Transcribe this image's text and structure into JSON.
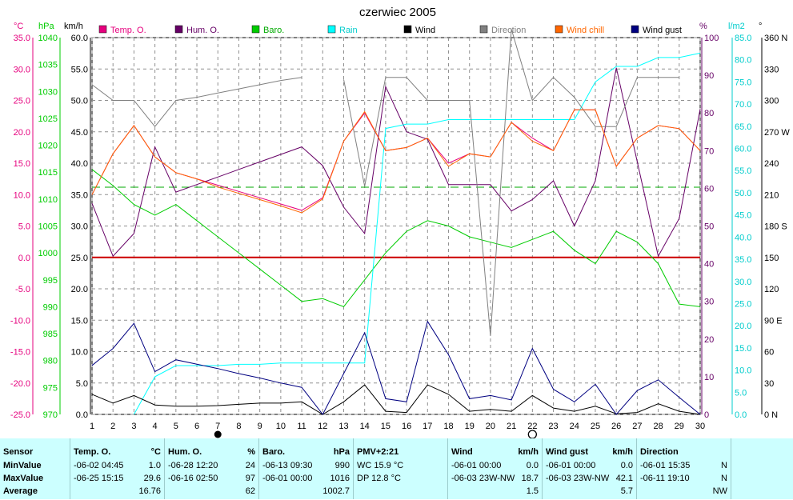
{
  "title": "czerwiec 2005",
  "colors": {
    "temp": "#e6007e",
    "hum": "#660066",
    "baro": "#00cc00",
    "rain": "#00ffff",
    "wind": "#000000",
    "direction": "#808080",
    "windchill": "#ff6600",
    "gust": "#000080",
    "zero": "#cc0000",
    "baroRef": "#00aa00"
  },
  "units": {
    "temp": "°C",
    "baro": "hPa",
    "wind": "km/h",
    "hum": "%",
    "rain": "l/m2",
    "dir": "°"
  },
  "legend": [
    "Temp. O.",
    "Hum. O.",
    "Baro.",
    "Rain",
    "Wind",
    "Direction",
    "Wind chill",
    "Wind gust"
  ],
  "moon_phases": [
    {
      "day": 7,
      "phase": "full"
    },
    {
      "day": 22,
      "phase": "new"
    }
  ],
  "chart_data": {
    "type": "line",
    "x": [
      1,
      2,
      3,
      4,
      5,
      6,
      7,
      8,
      9,
      10,
      11,
      12,
      13,
      14,
      15,
      16,
      17,
      18,
      19,
      20,
      21,
      22,
      23,
      24,
      25,
      26,
      27,
      28,
      29,
      30
    ],
    "axes": {
      "temp": {
        "min": -25,
        "max": 35,
        "step": 5,
        "ticks": [
          "35.0",
          "30.0",
          "25.0",
          "20.0",
          "15.0",
          "10.0",
          "5.0",
          "0.0",
          "-5.0",
          "-10.0",
          "-15.0",
          "-20.0",
          "-25.0"
        ]
      },
      "baro": {
        "min": 970,
        "max": 1040,
        "step": 5,
        "ticks": [
          "1040",
          "1035",
          "1030",
          "1025",
          "1020",
          "1015",
          "1010",
          "1005",
          "1000",
          "995",
          "990",
          "985",
          "980",
          "975",
          "970"
        ]
      },
      "wind": {
        "min": 0,
        "max": 60,
        "step": 5,
        "ticks": [
          "60.0",
          "55.0",
          "50.0",
          "45.0",
          "40.0",
          "35.0",
          "30.0",
          "25.0",
          "20.0",
          "15.0",
          "10.0",
          "5.0",
          "0.0"
        ]
      },
      "hum": {
        "min": 0,
        "max": 100,
        "step": 10,
        "ticks": [
          "100",
          "90",
          "80",
          "70",
          "60",
          "50",
          "40",
          "30",
          "20",
          "10",
          "0"
        ]
      },
      "rain": {
        "min": 0,
        "max": 85,
        "step": 5,
        "ticks": [
          "85.0",
          "80.0",
          "75.0",
          "70.0",
          "65.0",
          "60.0",
          "55.0",
          "50.0",
          "45.0",
          "40.0",
          "35.0",
          "30.0",
          "25.0",
          "20.0",
          "15.0",
          "10.0",
          "5.0",
          "0.0"
        ]
      },
      "dir": {
        "min": 0,
        "max": 360,
        "step": 30,
        "ticks": [
          "360 N",
          "330",
          "300",
          "270 W",
          "240",
          "210",
          "180 S",
          "150",
          "120",
          "90 E",
          "60",
          "30",
          "0 N"
        ]
      }
    },
    "series": [
      {
        "name": "Temp. O.",
        "axis": "temp",
        "color": "#e6007e",
        "values": [
          10.0,
          16.5,
          21.0,
          16.0,
          13.5,
          12.5,
          11.5,
          10.5,
          9.5,
          8.5,
          7.5,
          9.5,
          18.5,
          23.0,
          17.0,
          17.5,
          19.0,
          15.0,
          16.5,
          16.0,
          21.5,
          19.0,
          17.0,
          23.5,
          23.5,
          14.5,
          19.0,
          21.0,
          20.5,
          17.0
        ]
      },
      {
        "name": "Hum. O.",
        "axis": "hum",
        "color": "#660066",
        "values": [
          56,
          42,
          48,
          71,
          59,
          61,
          63,
          65,
          67,
          69,
          71,
          66,
          55,
          48,
          87,
          75,
          73,
          61,
          61,
          61,
          54,
          57,
          62,
          50,
          62,
          92,
          67,
          42,
          52,
          81
        ]
      },
      {
        "name": "Baro.",
        "axis": "baro",
        "color": "#00cc00",
        "values": [
          1015.5,
          1012.5,
          1009,
          1007,
          1009,
          1006,
          1003,
          1000,
          997,
          994,
          991,
          991.5,
          990,
          995,
          1000,
          1004,
          1006,
          1005,
          1003,
          1002,
          1001,
          1002.5,
          1004,
          1000.5,
          998,
          1004,
          1002,
          998,
          990.5,
          990
        ]
      },
      {
        "name": "Rain",
        "axis": "rain",
        "color": "#00ffff",
        "values": [
          null,
          null,
          0,
          8.5,
          11,
          11,
          11,
          11.3,
          11.3,
          11.6,
          11.6,
          11.6,
          11.6,
          11.6,
          64.5,
          65.5,
          65.5,
          66.5,
          66.5,
          66.5,
          66.5,
          66.5,
          66.5,
          66.5,
          75,
          78.5,
          78.5,
          80.5,
          80.5,
          81.5
        ]
      },
      {
        "name": "Wind",
        "axis": "wind",
        "color": "#000000",
        "values": [
          3.2,
          1.8,
          3.0,
          1.5,
          1.3,
          1.3,
          1.4,
          1.6,
          1.8,
          1.8,
          2.0,
          0.0,
          2.0,
          4.7,
          0.5,
          0.3,
          4.7,
          3.2,
          0.5,
          0.8,
          0.5,
          3.0,
          1.0,
          0.5,
          1.3,
          0.1,
          0.3,
          1.7,
          0.5,
          0.0
        ]
      },
      {
        "name": "Direction",
        "axis": "dir",
        "color": "#808080",
        "values": [
          315,
          300,
          300,
          275,
          300,
          303,
          307,
          311,
          315,
          319,
          322,
          null,
          320,
          218,
          322,
          322,
          300,
          300,
          300,
          75,
          368,
          300,
          322,
          303,
          275,
          275,
          322,
          322,
          322,
          null
        ]
      },
      {
        "name": "Wind chill",
        "axis": "temp",
        "color": "#ff6600",
        "values": [
          10.0,
          16.5,
          21.0,
          16.0,
          13.5,
          12.5,
          11.2,
          10.2,
          9.2,
          8.2,
          7.1,
          9.3,
          18.5,
          23.2,
          17.0,
          17.5,
          19.0,
          14.5,
          16.5,
          16.0,
          21.5,
          18.5,
          17.0,
          23.5,
          23.5,
          14.5,
          19.0,
          21.0,
          20.5,
          17.0
        ]
      },
      {
        "name": "Wind gust",
        "axis": "wind",
        "color": "#000080",
        "values": [
          7.8,
          10.5,
          14.5,
          6.8,
          8.7,
          8.0,
          7.3,
          6.5,
          5.8,
          5.0,
          4.3,
          0.0,
          6.5,
          13.0,
          2.5,
          2.0,
          14.8,
          9.5,
          2.5,
          3.0,
          2.3,
          10.5,
          4.0,
          2.0,
          4.8,
          0.0,
          3.8,
          5.5,
          2.7,
          0.0
        ]
      }
    ],
    "reference_lines": [
      {
        "axis": "temp",
        "value": 0.0,
        "color": "#cc0000"
      },
      {
        "axis": "baro",
        "value": 1012.2,
        "color": "#00aa00"
      }
    ]
  },
  "panel": {
    "sensor": {
      "header": "Sensor",
      "min": "MinValue",
      "max": "MaxValue",
      "avg": "Average"
    },
    "temp": {
      "header": "Temp. O.",
      "unit": "°C",
      "min_time": "-06-02  04:45",
      "min_val": "1.0",
      "max_time": "-06-25  15:15",
      "max_val": "29.6",
      "avg": "16.76"
    },
    "hum": {
      "header": "Hum. O.",
      "unit": "%",
      "min_time": "-06-28  12:20",
      "min_val": "24",
      "max_time": "-06-16  02:50",
      "max_val": "97",
      "avg": "62"
    },
    "baro": {
      "header": "Baro.",
      "unit": "hPa",
      "min_time": "-06-13  09:30",
      "min_val": "990",
      "max_time": "-06-01  00:00",
      "max_val": "1016",
      "avg": "1002.7"
    },
    "pmv": {
      "header": "PMV+2:21",
      "line1": "WC 15.9 °C",
      "line2": "DP 12.8 °C"
    },
    "wind": {
      "header": "Wind",
      "unit": "km/h",
      "min_time": "-06-01  00:00",
      "min_dir": "",
      "min_val": "0.0",
      "max_time": "-06-03  23W-NW",
      "max_val": "18.7",
      "avg": "1.5"
    },
    "gust": {
      "header": "Wind gust",
      "unit": "km/h",
      "min_time": "-06-01  00:00",
      "min_val": "0.0",
      "max_time": "-06-03  23W-NW",
      "max_val": "42.1",
      "avg": "5.7"
    },
    "dir": {
      "header": "Direction",
      "min_time": "-06-01  15:35",
      "min_val": "N",
      "max_time": "-06-11  19:10",
      "max_val": "N",
      "avg": "NW"
    }
  }
}
